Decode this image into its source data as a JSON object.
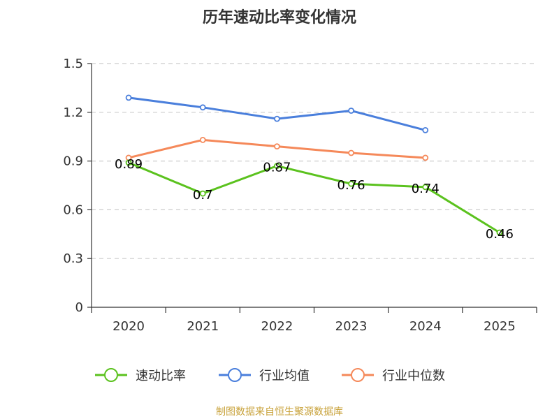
{
  "chart_data": {
    "type": "line",
    "title": "历年速动比率变化情况",
    "categories": [
      "2020",
      "2021",
      "2022",
      "2023",
      "2024",
      "2025"
    ],
    "ylim": [
      0,
      1.5
    ],
    "yticks": [
      {
        "value": 0,
        "label": "0"
      },
      {
        "value": 0.3,
        "label": "0.3"
      },
      {
        "value": 0.6,
        "label": "0.6"
      },
      {
        "value": 0.9,
        "label": "0.9"
      },
      {
        "value": 1.2,
        "label": "1.2"
      },
      {
        "value": 1.5,
        "label": "1.5"
      }
    ],
    "grid": true,
    "legend_position": "bottom",
    "series": [
      {
        "name": "速动比率",
        "color": "#5bc21e",
        "values": [
          0.89,
          0.7,
          0.87,
          0.76,
          0.74,
          0.46
        ],
        "labels": [
          "0.89",
          "0.7",
          "0.87",
          "0.76",
          "0.74",
          "0.46"
        ],
        "show_labels": true
      },
      {
        "name": "行业均值",
        "color": "#4a7fdc",
        "values": [
          1.29,
          1.23,
          1.16,
          1.21,
          1.09,
          null
        ],
        "show_labels": false
      },
      {
        "name": "行业中位数",
        "color": "#f5895a",
        "values": [
          0.92,
          1.03,
          0.99,
          0.95,
          0.92,
          null
        ],
        "show_labels": false
      }
    ]
  },
  "source_text": "制图数据来自恒生聚源数据库"
}
